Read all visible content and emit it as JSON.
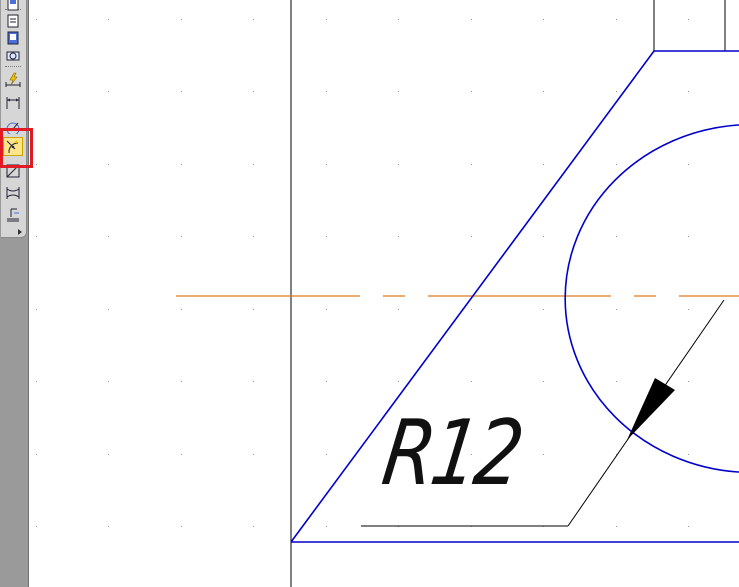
{
  "toolbar": {
    "tools": [
      {
        "name": "tool-1-icon"
      },
      {
        "name": "tool-2-icon"
      },
      {
        "name": "tool-3-icon"
      },
      {
        "name": "smart-dimension-icon"
      },
      {
        "name": "linear-dimension-icon"
      },
      {
        "name": "angular-dimension-icon"
      },
      {
        "name": "radial-dimension-icon",
        "active": true
      },
      {
        "name": "diameter-dimension-icon"
      },
      {
        "name": "break-dimension-icon"
      },
      {
        "name": "leader-icon"
      }
    ],
    "highlight_color": "#e01b24"
  },
  "drawing": {
    "dimension_text": "R12",
    "outline_color": "#0000cc",
    "centerline_color": "#e07b20",
    "construction_color": "#000000"
  }
}
